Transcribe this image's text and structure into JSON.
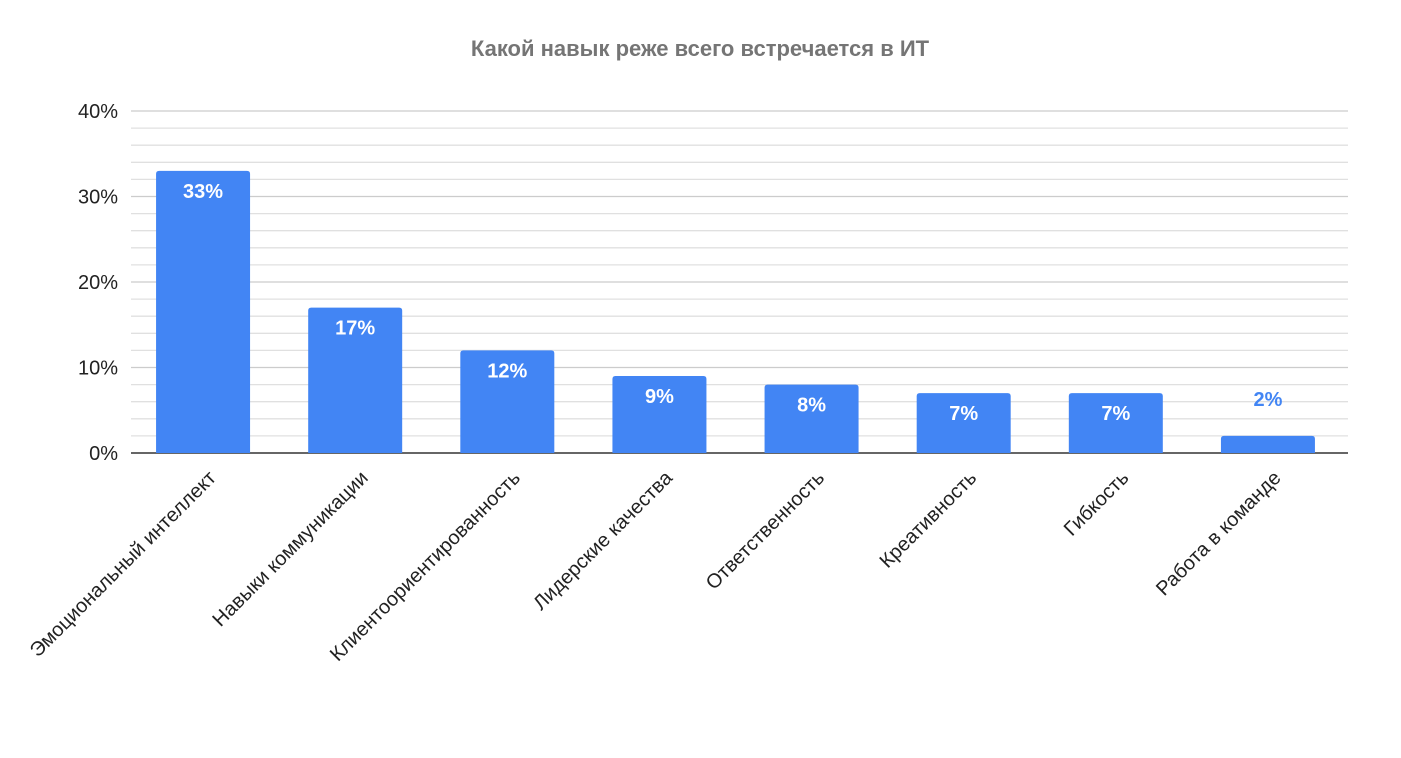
{
  "chart_data": {
    "type": "bar",
    "title": "Какой навык реже всего встречается в ИТ",
    "xlabel": "",
    "ylabel": "",
    "categories": [
      "Эмоциональный интеллект",
      "Навыки коммуникации",
      "Клиентоориентированность",
      "Лидерские качества",
      "Ответственность",
      "Креативность",
      "Гибкость",
      "Работа в команде"
    ],
    "values": [
      33,
      17,
      12,
      9,
      8,
      7,
      7,
      2
    ],
    "data_labels": [
      "33%",
      "17%",
      "12%",
      "9%",
      "8%",
      "7%",
      "7%",
      "2%"
    ],
    "ylim": [
      0,
      40
    ],
    "yticks": [
      0,
      10,
      20,
      30,
      40
    ],
    "ytick_labels": [
      "0%",
      "10%",
      "20%",
      "30%",
      "40%"
    ],
    "minor_grid_step": 2,
    "grid": true,
    "legend": "none",
    "colors": {
      "bar": "#4285f4",
      "title": "#757575",
      "grid": "#e0e0e0",
      "major_grid": "#cccccc",
      "axis": "#333333"
    }
  }
}
